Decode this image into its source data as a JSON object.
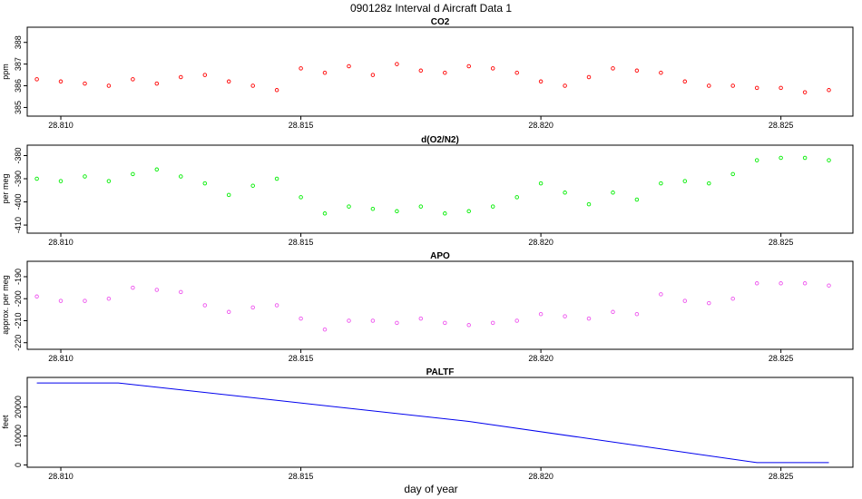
{
  "figure": {
    "title": "090128z   Interval d Aircraft Data 1",
    "xlabel": "day of year"
  },
  "chart_data": [
    {
      "type": "scatter",
      "title": "CO2",
      "ylabel": "ppm",
      "xlim": [
        28.8093,
        28.8265
      ],
      "ylim": [
        384.6,
        388.7
      ],
      "x_ticks": [
        28.81,
        28.815,
        28.82,
        28.825
      ],
      "x_tick_labels": [
        "28.810",
        "28.815",
        "28.820",
        "28.825"
      ],
      "y_ticks": [
        385,
        386,
        387,
        388
      ],
      "y_tick_labels": [
        "385",
        "386",
        "387",
        "388"
      ],
      "color": "#ff0000",
      "series": [
        {
          "name": "CO2",
          "x": [
            28.8095,
            28.81,
            28.8105,
            28.811,
            28.8115,
            28.812,
            28.8125,
            28.813,
            28.8135,
            28.814,
            28.8145,
            28.815,
            28.8155,
            28.816,
            28.8165,
            28.817,
            28.8175,
            28.818,
            28.8185,
            28.819,
            28.8195,
            28.82,
            28.8205,
            28.821,
            28.8215,
            28.822,
            28.8225,
            28.823,
            28.8235,
            28.824,
            28.8245,
            28.825,
            28.8255,
            28.826
          ],
          "y": [
            386.3,
            386.2,
            386.1,
            386.0,
            386.3,
            386.1,
            386.4,
            386.5,
            386.2,
            386.0,
            385.8,
            386.8,
            386.6,
            386.9,
            386.5,
            387.0,
            386.7,
            386.6,
            386.9,
            386.8,
            386.6,
            386.2,
            386.0,
            386.4,
            386.8,
            386.7,
            386.6,
            386.2,
            386.0,
            386.0,
            385.9,
            385.9,
            385.7,
            385.8
          ]
        }
      ]
    },
    {
      "type": "scatter",
      "title": "d(O2/N2)",
      "ylabel": "per meg",
      "xlim": [
        28.8093,
        28.8265
      ],
      "ylim": [
        -413.5,
        -375.5
      ],
      "x_ticks": [
        28.81,
        28.815,
        28.82,
        28.825
      ],
      "x_tick_labels": [
        "28.810",
        "28.815",
        "28.820",
        "28.825"
      ],
      "y_ticks": [
        -410,
        -400,
        -390,
        -380
      ],
      "y_tick_labels": [
        "-410",
        "-400",
        "-390",
        "-380"
      ],
      "color": "#00ee00",
      "series": [
        {
          "name": "d(O2/N2)",
          "x": [
            28.8095,
            28.81,
            28.8105,
            28.811,
            28.8115,
            28.812,
            28.8125,
            28.813,
            28.8135,
            28.814,
            28.8145,
            28.815,
            28.8155,
            28.816,
            28.8165,
            28.817,
            28.8175,
            28.818,
            28.8185,
            28.819,
            28.8195,
            28.82,
            28.8205,
            28.821,
            28.8215,
            28.822,
            28.8225,
            28.823,
            28.8235,
            28.824,
            28.8245,
            28.825,
            28.8255,
            28.826
          ],
          "y": [
            -390,
            -391,
            -389,
            -391,
            -388,
            -386,
            -389,
            -392,
            -397,
            -393,
            -390,
            -398,
            -405,
            -402,
            -403,
            -404,
            -402,
            -405,
            -404,
            -402,
            -398,
            -392,
            -396,
            -401,
            -396,
            -399,
            -392,
            -391,
            -392,
            -388,
            -382,
            -381,
            -381,
            -382
          ]
        }
      ]
    },
    {
      "type": "scatter",
      "title": "APO",
      "ylabel": "approx. per meg",
      "xlim": [
        28.8093,
        28.8265
      ],
      "ylim": [
        -223,
        -183
      ],
      "x_ticks": [
        28.81,
        28.815,
        28.82,
        28.825
      ],
      "x_tick_labels": [
        "28.810",
        "28.815",
        "28.820",
        "28.825"
      ],
      "y_ticks": [
        -220,
        -210,
        -200,
        -190
      ],
      "y_tick_labels": [
        "-220",
        "-210",
        "-200",
        "-190"
      ],
      "color": "#ee55ee",
      "series": [
        {
          "name": "APO",
          "x": [
            28.8095,
            28.81,
            28.8105,
            28.811,
            28.8115,
            28.812,
            28.8125,
            28.813,
            28.8135,
            28.814,
            28.8145,
            28.815,
            28.8155,
            28.816,
            28.8165,
            28.817,
            28.8175,
            28.818,
            28.8185,
            28.819,
            28.8195,
            28.82,
            28.8205,
            28.821,
            28.8215,
            28.822,
            28.8225,
            28.823,
            28.8235,
            28.824,
            28.8245,
            28.825,
            28.8255,
            28.826
          ],
          "y": [
            -199,
            -201,
            -201,
            -200,
            -195,
            -196,
            -197,
            -203,
            -206,
            -204,
            -203,
            -209,
            -214,
            -210,
            -210,
            -211,
            -209,
            -211,
            -212,
            -211,
            -210,
            -207,
            -208,
            -209,
            -206,
            -207,
            -198,
            -201,
            -202,
            -200,
            -193,
            -193,
            -193,
            -194
          ]
        }
      ]
    },
    {
      "type": "line",
      "title": "PALTF",
      "ylabel": "feet",
      "xlim": [
        28.8093,
        28.8265
      ],
      "ylim": [
        -800,
        30200
      ],
      "x_ticks": [
        28.81,
        28.815,
        28.82,
        28.825
      ],
      "x_tick_labels": [
        "28.810",
        "28.815",
        "28.820",
        "28.825"
      ],
      "y_ticks": [
        0,
        10000,
        20000
      ],
      "y_tick_labels": [
        "0",
        "10000",
        "20000"
      ],
      "color": "#0000ee",
      "series": [
        {
          "name": "PALTF",
          "x": [
            28.8095,
            28.8112,
            28.8185,
            28.8245,
            28.826
          ],
          "y": [
            28300,
            28300,
            15000,
            800,
            800
          ]
        }
      ]
    }
  ]
}
